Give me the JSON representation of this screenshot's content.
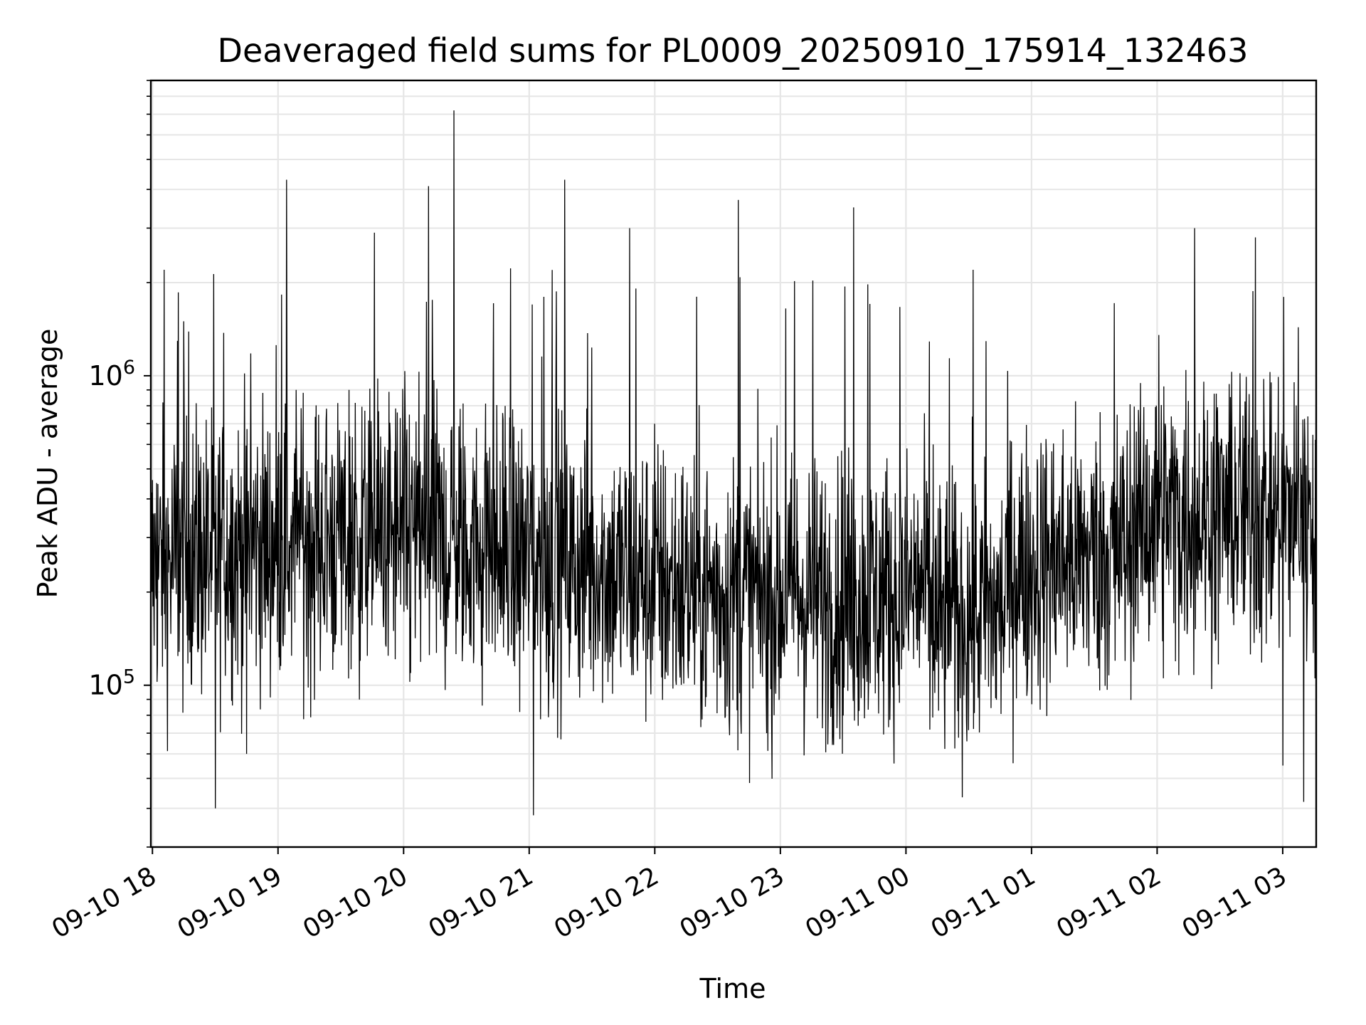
{
  "chart_data": {
    "type": "line",
    "title": "Deaveraged field sums for PL0009_20250910_175914_132463",
    "xlabel": "Time",
    "ylabel": "Peak ADU - average",
    "yscale": "log",
    "grid": true,
    "line_color": "#000000",
    "grid_color": "#e6e6e6",
    "xlim": [
      "2025-09-10 17:59:14",
      "2025-09-11 03:16:00"
    ],
    "ylim": [
      30000,
      9000000
    ],
    "x_ticks": [
      {
        "value": "2025-09-10 18:00",
        "label": "09-10 18"
      },
      {
        "value": "2025-09-10 19:00",
        "label": "09-10 19"
      },
      {
        "value": "2025-09-10 20:00",
        "label": "09-10 20"
      },
      {
        "value": "2025-09-10 21:00",
        "label": "09-10 21"
      },
      {
        "value": "2025-09-10 22:00",
        "label": "09-10 22"
      },
      {
        "value": "2025-09-10 23:00",
        "label": "09-10 23"
      },
      {
        "value": "2025-09-11 00:00",
        "label": "09-11 00"
      },
      {
        "value": "2025-09-11 01:00",
        "label": "09-11 01"
      },
      {
        "value": "2025-09-11 02:00",
        "label": "09-11 02"
      },
      {
        "value": "2025-09-11 03:00",
        "label": "09-11 03"
      }
    ],
    "y_ticks": [
      {
        "value": 100000,
        "base": "10",
        "exponent": "5"
      },
      {
        "value": 1000000,
        "base": "10",
        "exponent": "6"
      }
    ],
    "series": [
      {
        "x": [
          "2025-09-10 17:59:14",
          "2025-09-10 18:02:00",
          "2025-09-10 18:05:30",
          "2025-09-10 18:09:00",
          "2025-09-10 18:15:00",
          "2025-09-10 18:22:00",
          "2025-09-10 18:30:00",
          "2025-09-10 18:38:00",
          "2025-09-10 18:45:00",
          "2025-09-10 18:55:00",
          "2025-09-10 19:04:00",
          "2025-09-10 19:10:00",
          "2025-09-10 19:20:00",
          "2025-09-10 19:34:00",
          "2025-09-10 19:46:00",
          "2025-09-10 20:00:00",
          "2025-09-10 20:12:00",
          "2025-09-10 20:24:00",
          "2025-09-10 20:40:00",
          "2025-09-10 20:55:00",
          "2025-09-10 21:02:00",
          "2025-09-10 21:17:00",
          "2025-09-10 21:33:00",
          "2025-09-10 21:48:00",
          "2025-09-10 22:00:00",
          "2025-09-10 22:20:00",
          "2025-09-10 22:40:00",
          "2025-09-10 22:57:00",
          "2025-09-10 23:14:00",
          "2025-09-10 23:35:00",
          "2025-09-10 23:56:00",
          "2025-09-11 00:13:00",
          "2025-09-11 00:32:00",
          "2025-09-11 00:45:00",
          "2025-09-11 01:05:00",
          "2025-09-11 01:22:00",
          "2025-09-11 01:40:00",
          "2025-09-11 01:58:00",
          "2025-09-11 02:18:00",
          "2025-09-11 02:33:00",
          "2025-09-11 02:47:00",
          "2025-09-11 03:00:00",
          "2025-09-11 03:10:00",
          "2025-09-11 03:16:00"
        ],
        "y": [
          700000,
          450000,
          2200000,
          250000,
          1500000,
          600000,
          40000,
          500000,
          60000,
          180000,
          4300000,
          350000,
          300000,
          900000,
          2900000,
          260000,
          4100000,
          7200000,
          260000,
          150000,
          38000,
          4300000,
          200000,
          3000000,
          700000,
          1800000,
          3700000,
          80000,
          300000,
          3500000,
          150000,
          600000,
          2200000,
          300000,
          250000,
          500000,
          120000,
          500000,
          3000000,
          600000,
          2800000,
          55000,
          42000,
          2100000
        ]
      }
    ]
  }
}
